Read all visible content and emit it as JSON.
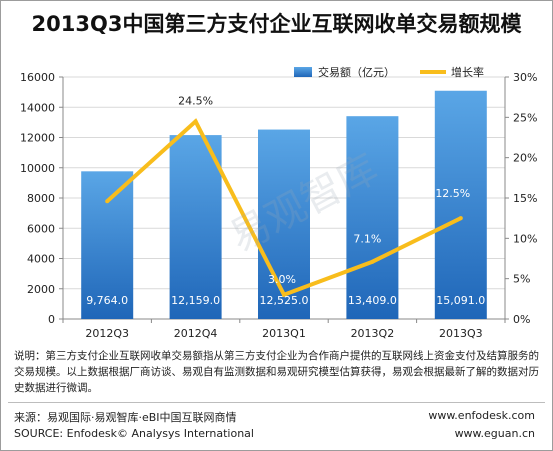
{
  "title": "2013Q3中国第三方支付企业互联网收单交易额规模",
  "chart_data": {
    "type": "bar",
    "categories": [
      "2012Q3",
      "2012Q4",
      "2013Q1",
      "2013Q2",
      "2013Q3"
    ],
    "series": [
      {
        "name": "交易额（亿元）",
        "kind": "bar",
        "axis": "left",
        "values": [
          9764.0,
          12159.0,
          12525.0,
          13409.0,
          15091.0
        ],
        "labels": [
          "9,764.0",
          "12,159.0",
          "12,525.0",
          "13,409.0",
          "15,091.0"
        ]
      },
      {
        "name": "增长率",
        "kind": "line",
        "axis": "right",
        "values": [
          14.6,
          24.5,
          3.0,
          7.1,
          12.5
        ],
        "labels": [
          "14.6%",
          "24.5%",
          "3.0%",
          "7.1%",
          "12.5%"
        ]
      }
    ],
    "y_left": {
      "min": 0,
      "max": 16000,
      "ticks": [
        "0",
        "2000",
        "4000",
        "6000",
        "8000",
        "10000",
        "12000",
        "14000",
        "16000"
      ]
    },
    "y_right": {
      "min": 0,
      "max": 30,
      "ticks": [
        "0%",
        "5%",
        "10%",
        "15%",
        "20%",
        "25%",
        "30%"
      ]
    },
    "legend_position": "top-right",
    "colors": {
      "bar_top": "#5aa6e6",
      "bar_bottom": "#1f66b8",
      "line": "#f8bd1c"
    }
  },
  "watermark": "易观智库",
  "note": "说明：第三方支付企业互联网收单交易额指从第三方支付企业为合作商户提供的互联网线上资金支付及结算服务的交易规模。以上数据根据厂商访谈、易观自有监测数据和易观研究模型估算获得，易观会根据最新了解的数据对历史数据进行微调。",
  "footer": {
    "source_cn": "来源：易观国际·易观智库·eBI中国互联网商情",
    "source_en": "SOURCE: Enfodesk© Analysys International",
    "url1": "www.enfodesk.com",
    "url2": "www.eguan.cn"
  }
}
